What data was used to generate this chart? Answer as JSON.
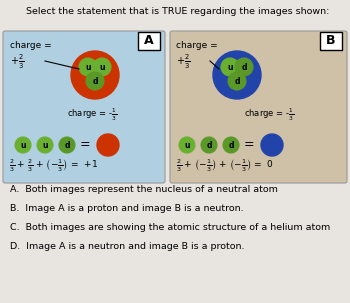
{
  "title": "Select the statement that is TRUE regarding the images shown:",
  "title_fontsize": 6.8,
  "bg_color": "#e8e5e0",
  "box_A_color": "#b0cfe0",
  "box_B_color": "#cfc0a8",
  "answer_options": [
    "A.  Both images represent the nucleus of a neutral atom",
    "B.  Image A is a proton and image B is a neutron.",
    "C.  Both images are showing the atomic structure of a helium atom",
    "D.  Image A is a neutron and image B is a proton."
  ],
  "label_A": "A",
  "label_B": "B",
  "quark_u_color": "#6ab030",
  "quark_d_color": "#5a9828",
  "quark_u_border": "#3a7010",
  "quark_d_border": "#3a7010",
  "proton_outer_color": "#cc3300",
  "neutron_outer_color": "#2244aa",
  "result_A_color": "#cc3300",
  "result_B_color": "#2244aa"
}
